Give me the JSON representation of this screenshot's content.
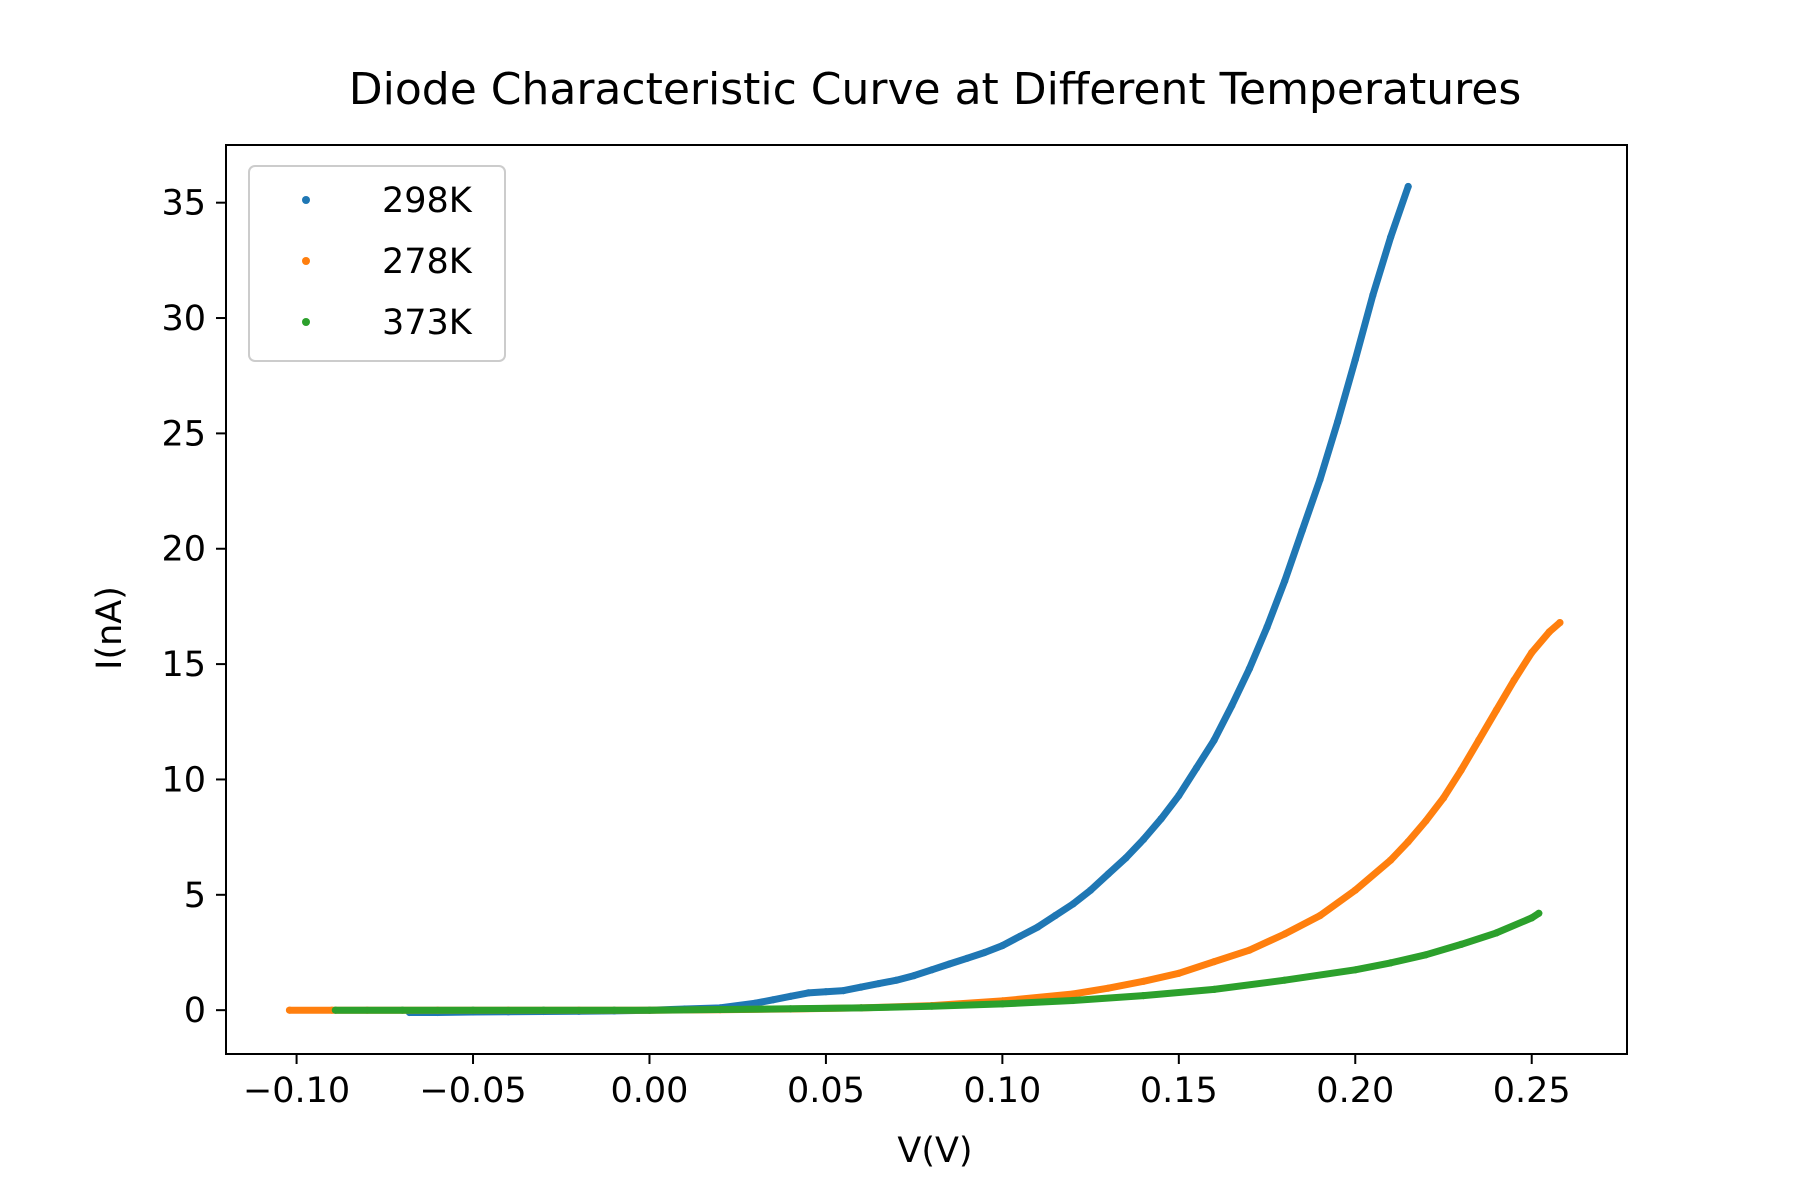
{
  "chart_data": {
    "type": "scatter",
    "title": "Diode Characteristic Curve at Different Temperatures",
    "xlabel": "V(V)",
    "ylabel": "I(nA)",
    "xlim": [
      -0.12,
      0.277
    ],
    "ylim": [
      -1.9,
      37.5
    ],
    "xticks": [
      -0.1,
      -0.05,
      0.0,
      0.05,
      0.1,
      0.15,
      0.2,
      0.25
    ],
    "xtick_labels": [
      "−0.10",
      "−0.05",
      "0.00",
      "0.05",
      "0.10",
      "0.15",
      "0.20",
      "0.25"
    ],
    "yticks": [
      0,
      5,
      10,
      15,
      20,
      25,
      30,
      35
    ],
    "ytick_labels": [
      "0",
      "5",
      "10",
      "15",
      "20",
      "25",
      "30",
      "35"
    ],
    "grid": false,
    "legend_position": "top-left",
    "series": [
      {
        "name": "298K",
        "color": "#1f77b4",
        "points": [
          [
            -0.068,
            -0.1
          ],
          [
            -0.06,
            -0.1
          ],
          [
            -0.05,
            -0.08
          ],
          [
            -0.04,
            -0.07
          ],
          [
            -0.03,
            -0.06
          ],
          [
            -0.02,
            -0.05
          ],
          [
            -0.01,
            -0.03
          ],
          [
            0.0,
            0.0
          ],
          [
            0.01,
            0.05
          ],
          [
            0.02,
            0.1
          ],
          [
            0.03,
            0.3
          ],
          [
            0.035,
            0.45
          ],
          [
            0.04,
            0.6
          ],
          [
            0.045,
            0.75
          ],
          [
            0.05,
            0.8
          ],
          [
            0.055,
            0.85
          ],
          [
            0.06,
            1.0
          ],
          [
            0.065,
            1.15
          ],
          [
            0.07,
            1.3
          ],
          [
            0.075,
            1.5
          ],
          [
            0.08,
            1.75
          ],
          [
            0.085,
            2.0
          ],
          [
            0.09,
            2.25
          ],
          [
            0.095,
            2.5
          ],
          [
            0.1,
            2.8
          ],
          [
            0.105,
            3.2
          ],
          [
            0.11,
            3.6
          ],
          [
            0.115,
            4.1
          ],
          [
            0.12,
            4.6
          ],
          [
            0.125,
            5.2
          ],
          [
            0.13,
            5.9
          ],
          [
            0.135,
            6.6
          ],
          [
            0.14,
            7.4
          ],
          [
            0.145,
            8.3
          ],
          [
            0.15,
            9.3
          ],
          [
            0.155,
            10.5
          ],
          [
            0.16,
            11.7
          ],
          [
            0.165,
            13.2
          ],
          [
            0.17,
            14.8
          ],
          [
            0.175,
            16.6
          ],
          [
            0.18,
            18.6
          ],
          [
            0.185,
            20.8
          ],
          [
            0.19,
            23.0
          ],
          [
            0.195,
            25.5
          ],
          [
            0.2,
            28.2
          ],
          [
            0.205,
            31.0
          ],
          [
            0.21,
            33.5
          ],
          [
            0.215,
            35.7
          ]
        ]
      },
      {
        "name": "278K",
        "color": "#ff7f0e",
        "points": [
          [
            -0.102,
            0.0
          ],
          [
            -0.09,
            0.0
          ],
          [
            -0.08,
            0.0
          ],
          [
            -0.06,
            0.0
          ],
          [
            -0.04,
            0.0
          ],
          [
            -0.02,
            0.0
          ],
          [
            0.0,
            0.0
          ],
          [
            0.02,
            0.02
          ],
          [
            0.04,
            0.05
          ],
          [
            0.06,
            0.1
          ],
          [
            0.08,
            0.2
          ],
          [
            0.1,
            0.4
          ],
          [
            0.12,
            0.7
          ],
          [
            0.13,
            0.95
          ],
          [
            0.14,
            1.25
          ],
          [
            0.15,
            1.6
          ],
          [
            0.16,
            2.1
          ],
          [
            0.17,
            2.6
          ],
          [
            0.18,
            3.3
          ],
          [
            0.19,
            4.1
          ],
          [
            0.2,
            5.2
          ],
          [
            0.21,
            6.5
          ],
          [
            0.215,
            7.3
          ],
          [
            0.22,
            8.2
          ],
          [
            0.225,
            9.2
          ],
          [
            0.23,
            10.4
          ],
          [
            0.235,
            11.7
          ],
          [
            0.24,
            13.0
          ],
          [
            0.245,
            14.3
          ],
          [
            0.25,
            15.5
          ],
          [
            0.255,
            16.4
          ],
          [
            0.258,
            16.8
          ]
        ]
      },
      {
        "name": "373K",
        "color": "#2ca02c",
        "points": [
          [
            -0.089,
            0.0
          ],
          [
            -0.07,
            0.0
          ],
          [
            -0.05,
            0.0
          ],
          [
            -0.03,
            0.0
          ],
          [
            -0.01,
            0.0
          ],
          [
            0.0,
            0.0
          ],
          [
            0.02,
            0.03
          ],
          [
            0.04,
            0.06
          ],
          [
            0.06,
            0.1
          ],
          [
            0.08,
            0.17
          ],
          [
            0.1,
            0.27
          ],
          [
            0.12,
            0.42
          ],
          [
            0.14,
            0.63
          ],
          [
            0.16,
            0.9
          ],
          [
            0.18,
            1.3
          ],
          [
            0.2,
            1.75
          ],
          [
            0.21,
            2.05
          ],
          [
            0.22,
            2.4
          ],
          [
            0.23,
            2.85
          ],
          [
            0.24,
            3.35
          ],
          [
            0.25,
            4.0
          ],
          [
            0.252,
            4.2
          ]
        ]
      }
    ]
  }
}
